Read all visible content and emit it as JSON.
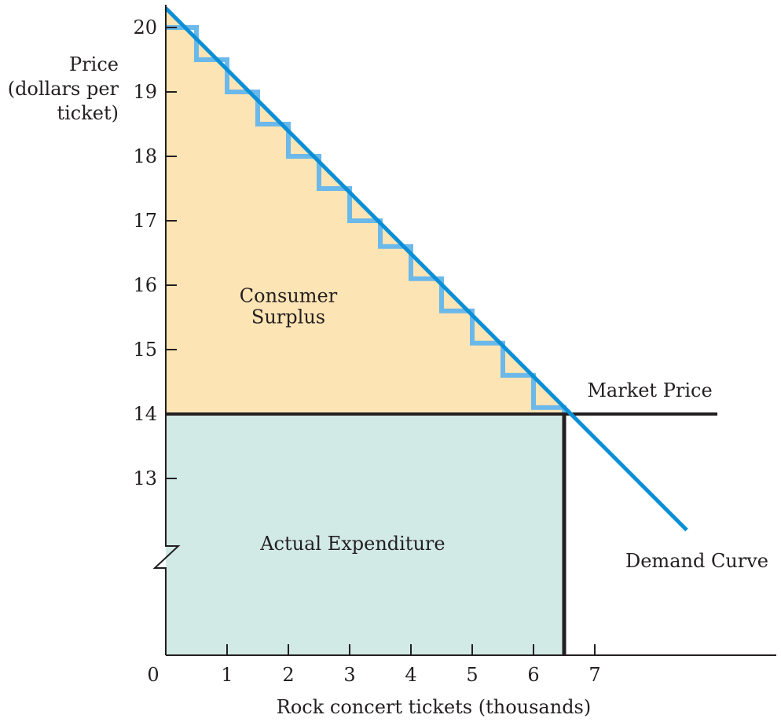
{
  "chart_data": {
    "type": "area",
    "title": "",
    "ylabel_lines": [
      "Price",
      "(dollars per",
      "ticket)"
    ],
    "xlabel": "Rock concert tickets (thousands)",
    "x_ticks": [
      {
        "value": 0,
        "label": "0"
      },
      {
        "value": 1,
        "label": "1"
      },
      {
        "value": 2,
        "label": "2"
      },
      {
        "value": 3,
        "label": "3"
      },
      {
        "value": 4,
        "label": "4"
      },
      {
        "value": 5,
        "label": "5"
      },
      {
        "value": 6,
        "label": "6"
      },
      {
        "value": 7,
        "label": "7"
      }
    ],
    "y_ticks": [
      {
        "value": 13,
        "label": "13"
      },
      {
        "value": 14,
        "label": "14"
      },
      {
        "value": 15,
        "label": "15"
      },
      {
        "value": 16,
        "label": "16"
      },
      {
        "value": 17,
        "label": "17"
      },
      {
        "value": 18,
        "label": "18"
      },
      {
        "value": 19,
        "label": "19"
      },
      {
        "value": 20,
        "label": "20"
      }
    ],
    "xlim": [
      0,
      10
    ],
    "ylim": [
      12,
      20.3
    ],
    "y_axis_break": true,
    "grid": false,
    "demand_curve": {
      "label": "Demand Curve",
      "start": {
        "x": 0,
        "y": 20.3
      },
      "end": {
        "x": 8.5,
        "y": 12.2
      },
      "color": "#0a8fd6"
    },
    "market_price": {
      "label": "Market Price",
      "price": 14,
      "x_end": 9.0,
      "color": "#231f20"
    },
    "quantity_sold": 6.5,
    "steps": {
      "width": 0.5,
      "values": [
        20.0,
        19.5,
        19.0,
        18.5,
        18.0,
        17.5,
        17.0,
        16.6,
        16.1,
        15.6,
        15.1,
        14.6,
        14.1
      ],
      "color": "#6bb8ea"
    },
    "regions": [
      {
        "label_lines": [
          "Consumer",
          "Surplus"
        ],
        "label_x": 2.0,
        "label_y": 15.85,
        "color": "#fde4b4"
      },
      {
        "label_lines": [
          "Actual Expenditure"
        ],
        "label_x": 3.05,
        "label_y": 13.0,
        "color": "#d2eae6"
      }
    ]
  }
}
